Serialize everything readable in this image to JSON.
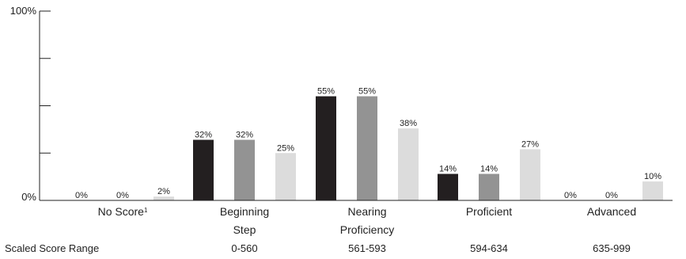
{
  "chart_data": {
    "type": "bar",
    "title": "",
    "xlabel": "",
    "ylabel": "",
    "ylim": [
      0,
      100
    ],
    "y_ticks_labeled": [
      {
        "value": 0,
        "label": "0%"
      },
      {
        "value": 100,
        "label": "100%"
      }
    ],
    "y_tick_values": [
      0,
      25,
      50,
      75,
      100
    ],
    "grid": false,
    "legend": "none",
    "categories": [
      {
        "lines": [
          "No Score",
          ""
        ],
        "sup": "1",
        "range": ""
      },
      {
        "lines": [
          "Beginning",
          "Step"
        ],
        "sup": "",
        "range": "0-560"
      },
      {
        "lines": [
          "Nearing",
          "Proficiency"
        ],
        "sup": "",
        "range": "561-593"
      },
      {
        "lines": [
          "Proficient",
          ""
        ],
        "sup": "",
        "range": "594-634"
      },
      {
        "lines": [
          "Advanced",
          ""
        ],
        "sup": "",
        "range": "635-999"
      }
    ],
    "range_row_label": "Scaled Score Range",
    "series": [
      {
        "color": "#231f20",
        "values": [
          0,
          32,
          55,
          14,
          0
        ],
        "labels": [
          "0%",
          "32%",
          "55%",
          "14%",
          "0%"
        ]
      },
      {
        "color": "#939393",
        "values": [
          0,
          32,
          55,
          14,
          0
        ],
        "labels": [
          "0%",
          "32%",
          "55%",
          "14%",
          "0%"
        ]
      },
      {
        "color": "#dcdcdc",
        "values": [
          2,
          25,
          38,
          27,
          10
        ],
        "labels": [
          "2%",
          "25%",
          "38%",
          "27%",
          "10%"
        ]
      }
    ]
  }
}
